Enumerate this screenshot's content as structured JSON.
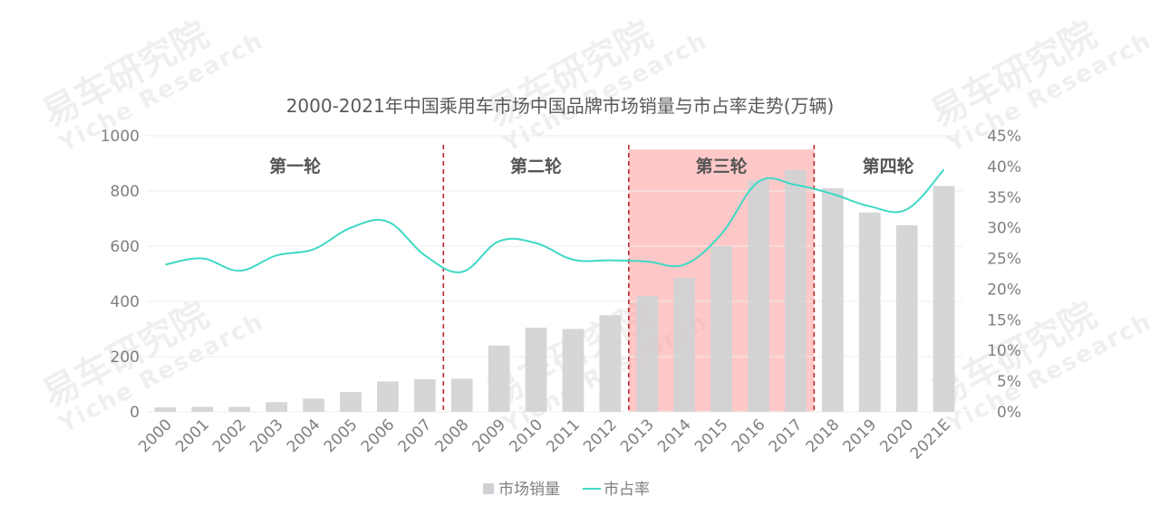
{
  "watermark": {
    "cn": "易车研究院",
    "en": "Yiche Research"
  },
  "chart_data": {
    "type": "bar",
    "title": "2000-2021年中国乘用车市场中国品牌市场销量与市占率走势(万辆)",
    "categories": [
      "2000",
      "2001",
      "2002",
      "2003",
      "2004",
      "2005",
      "2006",
      "2007",
      "2008",
      "2009",
      "2010",
      "2011",
      "2012",
      "2013",
      "2014",
      "2015",
      "2016",
      "2017",
      "2018",
      "2019",
      "2020",
      "2021E"
    ],
    "series": [
      {
        "name": "市场销量",
        "type": "bar",
        "axis": "left",
        "color": "#cfd1d4",
        "values": [
          16,
          18,
          18,
          35,
          48,
          72,
          110,
          118,
          120,
          240,
          305,
          300,
          350,
          420,
          485,
          600,
          840,
          876,
          810,
          722,
          676,
          818
        ]
      },
      {
        "name": "市占率",
        "type": "line",
        "axis": "right",
        "color": "#3fd9c4",
        "values": [
          24.0,
          25.0,
          23.0,
          25.5,
          26.5,
          30.0,
          31.0,
          25.5,
          22.8,
          27.8,
          27.5,
          24.8,
          24.7,
          24.5,
          24.0,
          29.0,
          37.5,
          37.0,
          35.5,
          33.5,
          33.0,
          39.5
        ]
      }
    ],
    "y_left": {
      "lim": [
        0,
        1000
      ],
      "ticks": [
        "0",
        "200",
        "400",
        "600",
        "800",
        "1000"
      ]
    },
    "y_right": {
      "lim": [
        0,
        45
      ],
      "ticks": [
        "0%",
        "5%",
        "10%",
        "15%",
        "20%",
        "25%",
        "30%",
        "35%",
        "40%",
        "45%"
      ]
    },
    "grid": true,
    "legend": {
      "position": "bottom",
      "items": [
        "市场销量",
        "市占率"
      ]
    },
    "phases": [
      {
        "label": "第一轮",
        "from": "2000",
        "to": "2007",
        "highlight": false
      },
      {
        "label": "第二轮",
        "from": "2007",
        "to": "2012",
        "highlight": false
      },
      {
        "label": "第三轮",
        "from": "2012",
        "to": "2017",
        "highlight": true
      },
      {
        "label": "第四轮",
        "from": "2017",
        "to": "2021E",
        "highlight": false
      }
    ],
    "colors": {
      "phase_line": "#c0282b",
      "highlight": "#ff9a9a",
      "grid": "#eeeeee",
      "text": "#7f7f7f",
      "title": "#595959"
    }
  }
}
